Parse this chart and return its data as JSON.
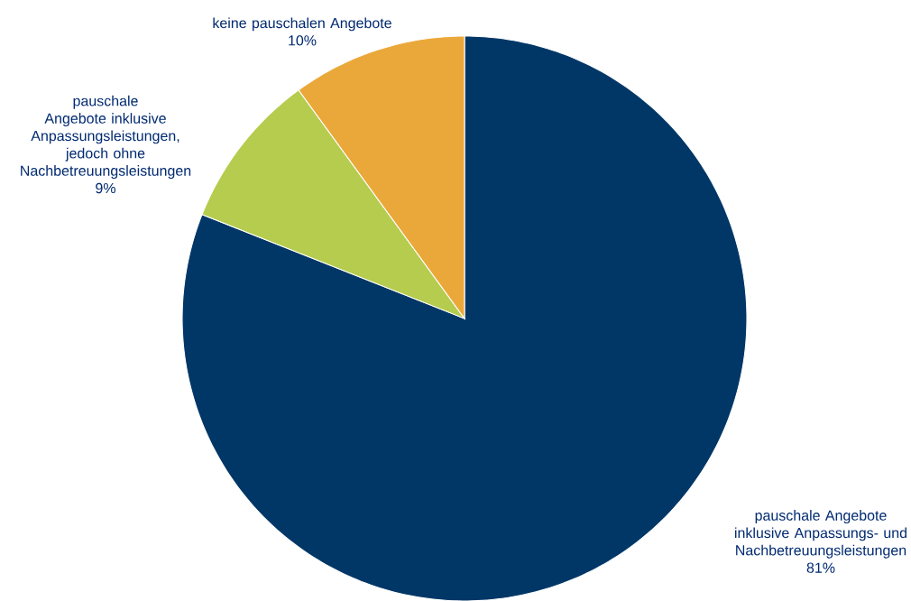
{
  "chart_data": {
    "type": "pie",
    "categories": [
      "pauschale Angebote inklusive Anpassungs- und Nachbetreuungsleistungen",
      "pauschale Angebote inklusive Anpassungsleistungen, jedoch ohne Nachbetreuungsleistungen",
      "keine pauschalen Angebote"
    ],
    "values": [
      81,
      9,
      10
    ],
    "value_labels": [
      "81%",
      "9%",
      "10%"
    ],
    "colors": [
      "#003767",
      "#b5cc4e",
      "#eba83a"
    ]
  }
}
